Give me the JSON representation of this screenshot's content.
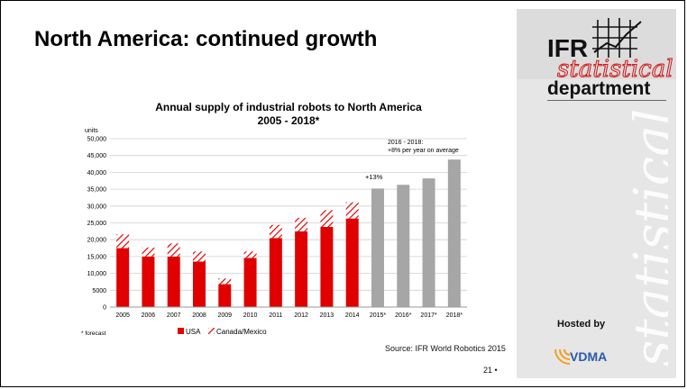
{
  "slide": {
    "title": "North America: continued growth",
    "page_number": "21 •",
    "source": "Source: IFR World Robotics 2015",
    "hosted_by": "Hosted by"
  },
  "logo": {
    "ifr": "IFR",
    "statistical": "statistical",
    "department": "department",
    "vdma": "VDMA",
    "watermark": "statistical"
  },
  "colors": {
    "usa": "#e00000",
    "canada_mexico": "#e00000",
    "forecast": "#a6a6a6",
    "sidebar": "#e6e6e6"
  },
  "chart_data": {
    "type": "bar",
    "title": "Annual supply of industrial robots to North America",
    "subtitle": "2005 - 2018*",
    "ylabel": "units",
    "xlabel": "",
    "ylim": [
      0,
      50000
    ],
    "yticks": [
      "0",
      "5000",
      "10,000",
      "15,000",
      "20,000",
      "25,000",
      "30,000",
      "35,000",
      "40,000",
      "45,000",
      "50,000"
    ],
    "ytick_values": [
      0,
      5000,
      10000,
      15000,
      20000,
      25000,
      30000,
      35000,
      40000,
      45000,
      50000
    ],
    "categories": [
      "2005",
      "2006",
      "2007",
      "2008",
      "2009",
      "2010",
      "2011",
      "2012",
      "2013",
      "2014",
      "2015*",
      "2016*",
      "2017*",
      "2018*"
    ],
    "stacked": true,
    "grid": true,
    "series": [
      {
        "name": "USA",
        "values": [
          17500,
          15000,
          15000,
          13500,
          6800,
          14600,
          20500,
          22500,
          23800,
          26300,
          null,
          null,
          null,
          null
        ]
      },
      {
        "name": "Canada/Mexico",
        "values": [
          4100,
          2700,
          3900,
          3000,
          1700,
          1900,
          3900,
          4000,
          5000,
          4800,
          null,
          null,
          null,
          null
        ]
      },
      {
        "name": "Forecast",
        "values": [
          null,
          null,
          null,
          null,
          null,
          null,
          null,
          null,
          null,
          null,
          35200,
          36300,
          38200,
          43800
        ]
      }
    ],
    "legend": [
      "USA",
      "Canada/Mexico"
    ],
    "legend_position": "bottom",
    "annotations": {
      "growth_2015": "+13%",
      "forecast_note_1": "2016 - 2018:",
      "forecast_note_2": "+8% per year on average",
      "forecast_footnote": "* forecast"
    }
  }
}
